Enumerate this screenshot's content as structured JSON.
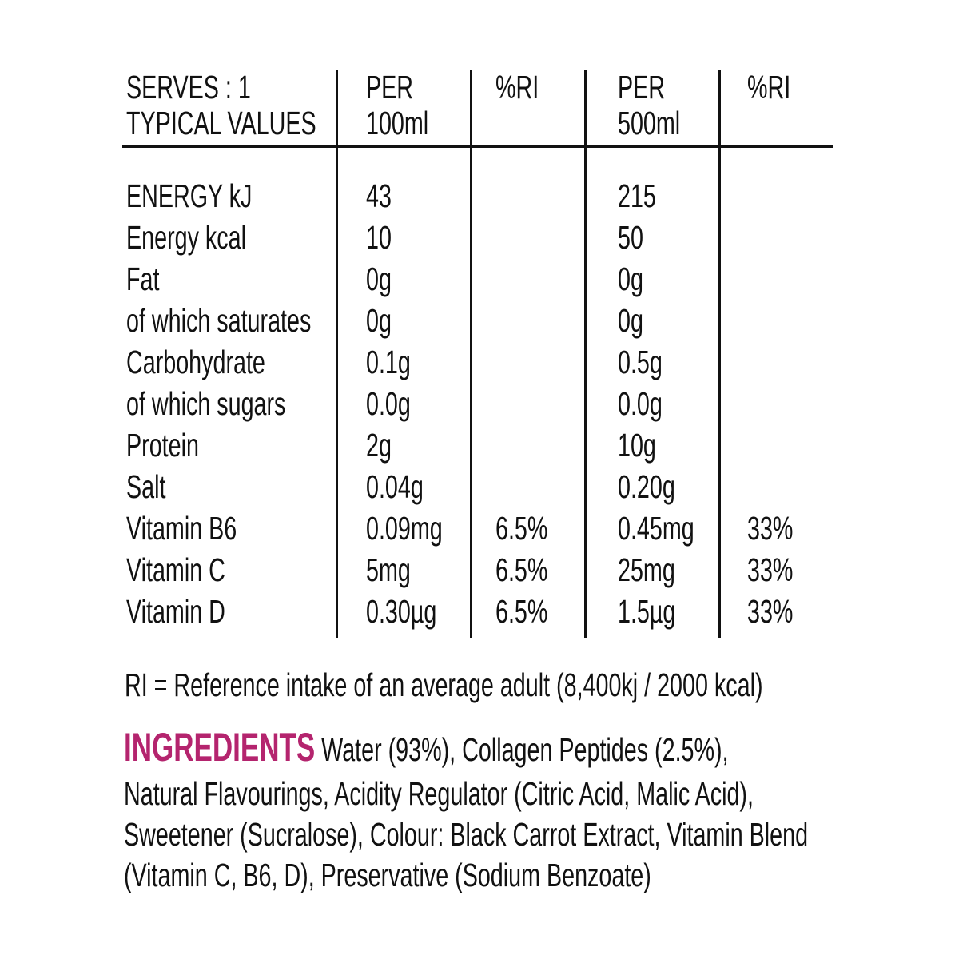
{
  "header": {
    "label_line1": "SERVES : 1",
    "label_line2": "TYPICAL VALUES",
    "col_per100_line1": "PER",
    "col_per100_line2": "100ml",
    "col_ri1": "%RI",
    "col_per500_line1": "PER",
    "col_per500_line2": "500ml",
    "col_ri2": "%RI"
  },
  "rows": [
    {
      "label": "ENERGY kJ",
      "per100": "43",
      "ri100": "",
      "per500": "215",
      "ri500": ""
    },
    {
      "label": "Energy kcal",
      "per100": "10",
      "ri100": "",
      "per500": "50",
      "ri500": ""
    },
    {
      "label": "Fat",
      "per100": "0g",
      "ri100": "",
      "per500": "0g",
      "ri500": ""
    },
    {
      "label": "of which saturates",
      "per100": "0g",
      "ri100": "",
      "per500": "0g",
      "ri500": ""
    },
    {
      "label": "Carbohydrate",
      "per100": "0.1g",
      "ri100": "",
      "per500": "0.5g",
      "ri500": ""
    },
    {
      "label": "of which sugars",
      "per100": "0.0g",
      "ri100": "",
      "per500": "0.0g",
      "ri500": ""
    },
    {
      "label": "Protein",
      "per100": "2g",
      "ri100": "",
      "per500": "10g",
      "ri500": ""
    },
    {
      "label": "Salt",
      "per100": "0.04g",
      "ri100": "",
      "per500": "0.20g",
      "ri500": ""
    },
    {
      "label": "Vitamin B6",
      "per100": "0.09mg",
      "ri100": "6.5%",
      "per500": "0.45mg",
      "ri500": "33%"
    },
    {
      "label": "Vitamin C",
      "per100": "5mg",
      "ri100": "6.5%",
      "per500": "25mg",
      "ri500": "33%"
    },
    {
      "label": "Vitamin D",
      "per100": "0.30µg",
      "ri100": "6.5%",
      "per500": "1.5µg",
      "ri500": "33%"
    }
  ],
  "ri_note": "RI = Reference intake of an average adult (8,400kj / 2000 kcal)",
  "ingredients": {
    "heading": "INGREDIENTS",
    "heading_color": "#b4246e",
    "lines": [
      "Water (93%), Collagen Peptides (2.5%),",
      "Natural Flavourings, Acidity Regulator (Citric Acid, Malic Acid),",
      "Sweetener (Sucralose), Colour: Black Carrot Extract, Vitamin Blend",
      "(Vitamin C, B6, D), Preservative (Sodium Benzoate)"
    ]
  }
}
